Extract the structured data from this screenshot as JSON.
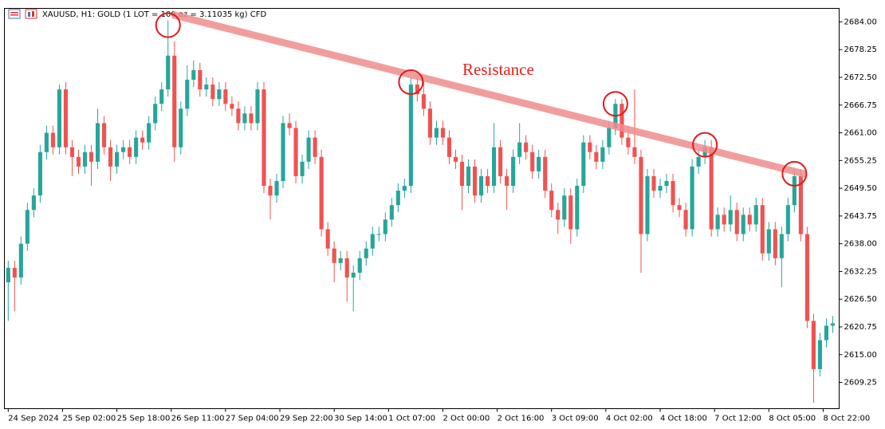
{
  "chart_data": {
    "type": "candlestick",
    "title": "XAUUSD, H1:  GOLD (1 LOT = 100 oz = 3.11035 kg) CFD",
    "up_color": "#26a69a",
    "down_color": "#ef5350",
    "candles": [
      [
        2630,
        2634.5,
        2622,
        2633
      ],
      [
        2633,
        2634.5,
        2624,
        2631
      ],
      [
        2631,
        2639.5,
        2629.5,
        2638
      ],
      [
        2638,
        2646.5,
        2636.5,
        2645
      ],
      [
        2645,
        2649.5,
        2643.5,
        2648
      ],
      [
        2648,
        2658.5,
        2646.5,
        2657
      ],
      [
        2657,
        2662.5,
        2655.5,
        2661
      ],
      [
        2661,
        2662.5,
        2656.5,
        2658
      ],
      [
        2658,
        2671,
        2656.5,
        2670
      ],
      [
        2670,
        2671.5,
        2656.5,
        2658
      ],
      [
        2658,
        2659.5,
        2652,
        2656
      ],
      [
        2656,
        2657.5,
        2652.5,
        2654
      ],
      [
        2654,
        2658.5,
        2652.5,
        2657
      ],
      [
        2657,
        2658.5,
        2650,
        2655
      ],
      [
        2655,
        2666,
        2653.5,
        2663
      ],
      [
        2663,
        2664.5,
        2656.5,
        2658
      ],
      [
        2658,
        2659.5,
        2651,
        2654
      ],
      [
        2654,
        2658.5,
        2652.5,
        2657
      ],
      [
        2657,
        2659.5,
        2655.5,
        2658
      ],
      [
        2658,
        2659.5,
        2654.5,
        2656
      ],
      [
        2656,
        2661.5,
        2654.5,
        2660
      ],
      [
        2660,
        2661.5,
        2657.5,
        2659
      ],
      [
        2659,
        2664.5,
        2657.5,
        2663
      ],
      [
        2663,
        2668.5,
        2661.5,
        2667
      ],
      [
        2667,
        2671.5,
        2665.5,
        2670
      ],
      [
        2670,
        2684.3,
        2668.5,
        2677
      ],
      [
        2677,
        2680,
        2655,
        2658
      ],
      [
        2658,
        2667.5,
        2656.5,
        2666
      ],
      [
        2666,
        2675,
        2664.5,
        2672
      ],
      [
        2672,
        2676,
        2670.5,
        2674
      ],
      [
        2674,
        2675.5,
        2668.5,
        2670
      ],
      [
        2670,
        2672.5,
        2668.5,
        2671
      ],
      [
        2671,
        2672.5,
        2666.5,
        2668
      ],
      [
        2668,
        2671.5,
        2666.5,
        2670
      ],
      [
        2670,
        2671.5,
        2665.5,
        2667
      ],
      [
        2667,
        2668.5,
        2664.5,
        2666
      ],
      [
        2666,
        2667.5,
        2661.5,
        2663
      ],
      [
        2663,
        2666.5,
        2661.5,
        2665
      ],
      [
        2665,
        2666.5,
        2661.5,
        2663
      ],
      [
        2663,
        2671.5,
        2661.5,
        2670
      ],
      [
        2670,
        2671.5,
        2648.5,
        2650
      ],
      [
        2650,
        2651.5,
        2643,
        2648
      ],
      [
        2648,
        2652.5,
        2646.5,
        2651
      ],
      [
        2651,
        2664.5,
        2649.5,
        2663
      ],
      [
        2663,
        2665,
        2660.5,
        2662
      ],
      [
        2662,
        2663.5,
        2650.5,
        2652
      ],
      [
        2652,
        2656.5,
        2650.5,
        2655
      ],
      [
        2655,
        2661.5,
        2653.5,
        2660
      ],
      [
        2660,
        2661.5,
        2654.5,
        2656
      ],
      [
        2656,
        2657.5,
        2639.5,
        2641
      ],
      [
        2641,
        2642.5,
        2635.5,
        2637
      ],
      [
        2637,
        2638.5,
        2630,
        2634
      ],
      [
        2634,
        2636.5,
        2632.5,
        2635
      ],
      [
        2635,
        2636.5,
        2626,
        2631
      ],
      [
        2631,
        2633.5,
        2624,
        2632
      ],
      [
        2632,
        2636.5,
        2630.5,
        2635
      ],
      [
        2635,
        2638.5,
        2633.5,
        2637
      ],
      [
        2637,
        2641.5,
        2635.5,
        2640
      ],
      [
        2640,
        2641.5,
        2638.5,
        2640
      ],
      [
        2640,
        2644.5,
        2638.5,
        2643
      ],
      [
        2643,
        2647.5,
        2641.5,
        2646
      ],
      [
        2646,
        2650.5,
        2644.5,
        2649
      ],
      [
        2649,
        2651.5,
        2647.5,
        2650
      ],
      [
        2650,
        2672.5,
        2648.5,
        2671
      ],
      [
        2671,
        2673,
        2667.5,
        2669
      ],
      [
        2669,
        2672,
        2664.5,
        2666
      ],
      [
        2666,
        2667.5,
        2658.5,
        2660
      ],
      [
        2660,
        2663.5,
        2658.5,
        2662
      ],
      [
        2662,
        2663.5,
        2658.5,
        2660
      ],
      [
        2660,
        2661.5,
        2654.5,
        2656
      ],
      [
        2656,
        2657.5,
        2653.5,
        2655
      ],
      [
        2655,
        2656.5,
        2645,
        2650
      ],
      [
        2650,
        2655.5,
        2648.5,
        2654
      ],
      [
        2654,
        2655.5,
        2646.5,
        2648
      ],
      [
        2648,
        2653.5,
        2646.5,
        2652
      ],
      [
        2652,
        2653.5,
        2648.5,
        2650
      ],
      [
        2650,
        2663,
        2648.5,
        2658
      ],
      [
        2658,
        2659.5,
        2650.5,
        2652
      ],
      [
        2652,
        2653.5,
        2645,
        2650
      ],
      [
        2650,
        2657.5,
        2648.5,
        2656
      ],
      [
        2656,
        2663,
        2654.5,
        2659
      ],
      [
        2659,
        2660.5,
        2655.5,
        2657
      ],
      [
        2657,
        2658.5,
        2651.5,
        2653
      ],
      [
        2653,
        2657.5,
        2651.5,
        2656
      ],
      [
        2656,
        2657.5,
        2647.5,
        2649
      ],
      [
        2649,
        2650.5,
        2643.5,
        2645
      ],
      [
        2645,
        2646.5,
        2640,
        2643
      ],
      [
        2643,
        2649.5,
        2641.5,
        2648
      ],
      [
        2648,
        2649.5,
        2638,
        2641
      ],
      [
        2641,
        2651.5,
        2639.5,
        2650
      ],
      [
        2650,
        2660.5,
        2648.5,
        2659
      ],
      [
        2659,
        2660.5,
        2655.5,
        2657
      ],
      [
        2657,
        2658.5,
        2653.5,
        2655
      ],
      [
        2655,
        2659.5,
        2653.5,
        2658
      ],
      [
        2658,
        2663.5,
        2656.5,
        2662
      ],
      [
        2662,
        2668,
        2660.5,
        2667
      ],
      [
        2667,
        2668,
        2658.5,
        2660
      ],
      [
        2660,
        2661.5,
        2656.5,
        2658
      ],
      [
        2658,
        2670,
        2654.5,
        2656
      ],
      [
        2656,
        2657.5,
        2632,
        2640
      ],
      [
        2640,
        2653.5,
        2638.5,
        2652
      ],
      [
        2652,
        2653.5,
        2647.5,
        2649
      ],
      [
        2649,
        2651.5,
        2647.5,
        2650
      ],
      [
        2650,
        2652.5,
        2648.5,
        2651
      ],
      [
        2651,
        2652.5,
        2644.5,
        2646
      ],
      [
        2646,
        2647.5,
        2643.5,
        2645
      ],
      [
        2645,
        2646.5,
        2639.5,
        2641
      ],
      [
        2641,
        2655.5,
        2639.5,
        2654
      ],
      [
        2654,
        2657.5,
        2652.5,
        2656
      ],
      [
        2656,
        2659.5,
        2654.5,
        2658
      ],
      [
        2658,
        2659.5,
        2639.5,
        2641
      ],
      [
        2641,
        2645.5,
        2639.5,
        2644
      ],
      [
        2644,
        2645.5,
        2640.5,
        2642
      ],
      [
        2642,
        2648,
        2640.5,
        2645
      ],
      [
        2645,
        2646.5,
        2638.5,
        2640
      ],
      [
        2640,
        2645.5,
        2638.5,
        2644
      ],
      [
        2644,
        2645.5,
        2640.5,
        2642
      ],
      [
        2642,
        2647.5,
        2640.5,
        2646
      ],
      [
        2646,
        2647.5,
        2634.5,
        2636
      ],
      [
        2636,
        2642.5,
        2634.5,
        2641
      ],
      [
        2641,
        2642.5,
        2633.5,
        2635
      ],
      [
        2635,
        2641.5,
        2629,
        2640
      ],
      [
        2640,
        2647.5,
        2638.5,
        2646
      ],
      [
        2646,
        2653.5,
        2644.5,
        2652
      ],
      [
        2652,
        2653.5,
        2638.5,
        2640
      ],
      [
        2640,
        2641.5,
        2620.5,
        2622
      ],
      [
        2622,
        2623.5,
        2605,
        2612
      ],
      [
        2612,
        2619.5,
        2610.5,
        2618
      ],
      [
        2618,
        2622.5,
        2616.5,
        2621
      ],
      [
        2621,
        2623,
        2619.5,
        2621.5
      ]
    ],
    "xlim": [
      -0.6,
      130
    ],
    "xticks": [
      {
        "value": 0,
        "label": "24 Sep 2024"
      },
      {
        "value": 8.5,
        "label": "25 Sep 02:00"
      },
      {
        "value": 17,
        "label": "25 Sep 18:00"
      },
      {
        "value": 25.5,
        "label": "26 Sep 11:00"
      },
      {
        "value": 34,
        "label": "27 Sep 04:00"
      },
      {
        "value": 42.5,
        "label": "29 Sep 22:00"
      },
      {
        "value": 51,
        "label": "30 Sep 14:00"
      },
      {
        "value": 59.5,
        "label": "1 Oct 07:00"
      },
      {
        "value": 68,
        "label": "2 Oct 00:00"
      },
      {
        "value": 76.5,
        "label": "2 Oct 16:00"
      },
      {
        "value": 85,
        "label": "3 Oct 09:00"
      },
      {
        "value": 93.5,
        "label": "4 Oct 02:00"
      },
      {
        "value": 102,
        "label": "4 Oct 18:00"
      },
      {
        "value": 110.5,
        "label": "7 Oct 12:00"
      },
      {
        "value": 119,
        "label": "8 Oct 05:00"
      },
      {
        "value": 127.5,
        "label": "8 Oct 22:00"
      }
    ],
    "ylim": [
      2603.8,
      2686.8
    ],
    "yticks": [
      {
        "value": 2684,
        "label": "2684.00"
      },
      {
        "value": 2678.25,
        "label": "2678.25"
      },
      {
        "value": 2672.5,
        "label": "2672.50"
      },
      {
        "value": 2666.75,
        "label": "2666.75"
      },
      {
        "value": 2661,
        "label": "2661.00"
      },
      {
        "value": 2655.25,
        "label": "2655.25"
      },
      {
        "value": 2649.5,
        "label": "2649.50"
      },
      {
        "value": 2643.75,
        "label": "2643.75"
      },
      {
        "value": 2638,
        "label": "2638.00"
      },
      {
        "value": 2632.25,
        "label": "2632.25"
      },
      {
        "value": 2626.5,
        "label": "2626.50"
      },
      {
        "value": 2620.75,
        "label": "2620.75"
      },
      {
        "value": 2615,
        "label": "2615.00"
      },
      {
        "value": 2609.25,
        "label": "2609.25"
      }
    ],
    "trendline": {
      "label": "Resistance",
      "color": "#f08c8c",
      "x": [
        25.7,
        124.8
      ],
      "y": [
        2685.5,
        2652.4
      ]
    },
    "circled_candles": [
      25,
      63,
      95,
      109,
      123
    ],
    "circle_color": "#e31a1a"
  }
}
